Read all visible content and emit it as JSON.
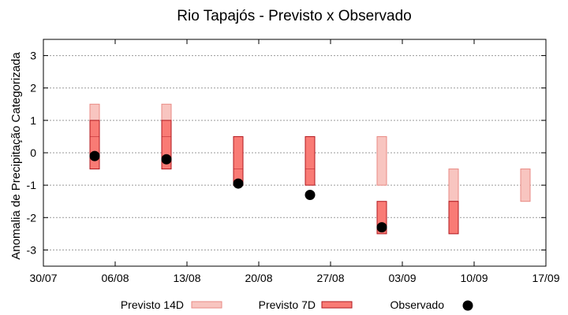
{
  "chart_data": {
    "type": "range-bar-scatter",
    "title": "Rio Tapajós - Previsto x Observado",
    "xlabel": "",
    "ylabel": "Anomalia de Precipitação Categorizada",
    "ylim": [
      -3.5,
      3.5
    ],
    "y_ticks": [
      "3",
      "2",
      "1",
      "0",
      "-1",
      "-2",
      "-3"
    ],
    "xlim": [
      "30/07",
      "17/09"
    ],
    "x_ticks": [
      "30/07",
      "06/08",
      "13/08",
      "20/08",
      "27/08",
      "03/09",
      "10/09",
      "17/09"
    ],
    "grid": "y-dotted",
    "legend_position": "bottom",
    "series": [
      {
        "name": "Previsto 14D",
        "kind": "range",
        "color": "#f8c5c0",
        "edge": "#e88a84",
        "points": [
          {
            "x": "04/08",
            "low": -0.5,
            "mid": 0.5,
            "high": 1.5
          },
          {
            "x": "11/08",
            "low": -0.5,
            "mid": 0.5,
            "high": 1.5
          },
          {
            "x": "01/09",
            "low": -1.0,
            "mid": null,
            "high": 0.5
          },
          {
            "x": "08/09",
            "low": -1.5,
            "mid": null,
            "high": -0.5
          },
          {
            "x": "15/09",
            "low": -1.5,
            "mid": null,
            "high": -0.5
          }
        ]
      },
      {
        "name": "Previsto 7D",
        "kind": "range",
        "color": "#f97b75",
        "edge": "#b1181f",
        "points": [
          {
            "x": "04/08",
            "low": -0.5,
            "mid": 0.5,
            "high": 1.0
          },
          {
            "x": "11/08",
            "low": -0.5,
            "mid": 0.5,
            "high": 1.0
          },
          {
            "x": "18/08",
            "low": -1.0,
            "mid": -0.5,
            "high": 0.5
          },
          {
            "x": "25/08",
            "low": -1.0,
            "mid": -0.5,
            "high": 0.5
          },
          {
            "x": "01/09",
            "low": -2.5,
            "mid": null,
            "high": -1.5
          },
          {
            "x": "08/09",
            "low": -2.5,
            "mid": null,
            "high": -1.5
          }
        ]
      },
      {
        "name": "Observado",
        "kind": "point",
        "color": "#000000",
        "points": [
          {
            "x": "04/08",
            "y": -0.1
          },
          {
            "x": "11/08",
            "y": -0.2
          },
          {
            "x": "18/08",
            "y": -0.95
          },
          {
            "x": "25/08",
            "y": -1.3
          },
          {
            "x": "01/09",
            "y": -2.3
          }
        ]
      }
    ]
  }
}
